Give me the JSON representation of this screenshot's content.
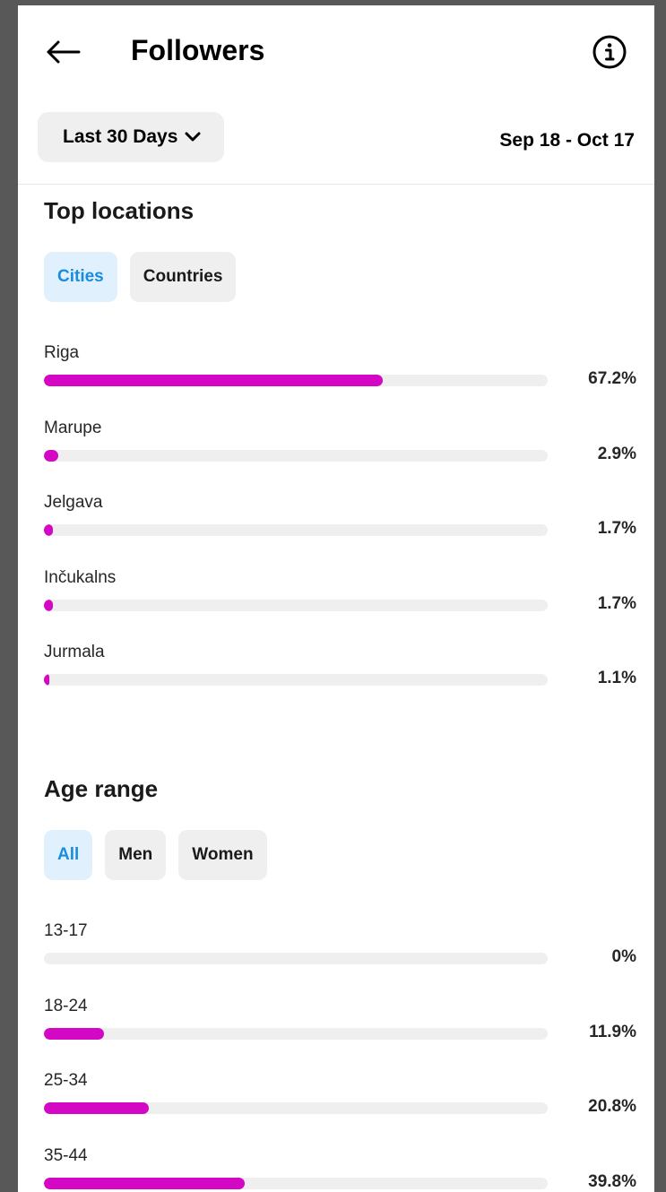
{
  "header": {
    "title": "Followers"
  },
  "filter": {
    "range_label": "Last 30 Days",
    "date_range": "Sep 18 - Oct 17"
  },
  "top_locations": {
    "title": "Top locations",
    "tabs": [
      {
        "label": "Cities",
        "active": true
      },
      {
        "label": "Countries",
        "active": false
      }
    ],
    "rows": [
      {
        "label": "Riga",
        "percent_text": "67.2%",
        "value": 67.2
      },
      {
        "label": "Marupe",
        "percent_text": "2.9%",
        "value": 2.9
      },
      {
        "label": "Jelgava",
        "percent_text": "1.7%",
        "value": 1.7
      },
      {
        "label": "Inčukalns",
        "percent_text": "1.7%",
        "value": 1.7
      },
      {
        "label": "Jurmala",
        "percent_text": "1.1%",
        "value": 1.1
      }
    ]
  },
  "age_range": {
    "title": "Age range",
    "tabs": [
      {
        "label": "All",
        "active": true
      },
      {
        "label": "Men",
        "active": false
      },
      {
        "label": "Women",
        "active": false
      }
    ],
    "rows": [
      {
        "label": "13-17",
        "percent_text": "0%",
        "value": 0
      },
      {
        "label": "18-24",
        "percent_text": "11.9%",
        "value": 11.9
      },
      {
        "label": "25-34",
        "percent_text": "20.8%",
        "value": 20.8
      },
      {
        "label": "35-44",
        "percent_text": "39.8%",
        "value": 39.8
      }
    ]
  },
  "colors": {
    "bar_fill": "#d408c4",
    "bar_track": "#efefef",
    "active_chip_bg": "#e0f1fd",
    "active_chip_text": "#1a8ce0"
  },
  "icons": {
    "back": "arrow-left-icon",
    "info": "info-circle-icon",
    "dropdown": "chevron-down-icon"
  }
}
